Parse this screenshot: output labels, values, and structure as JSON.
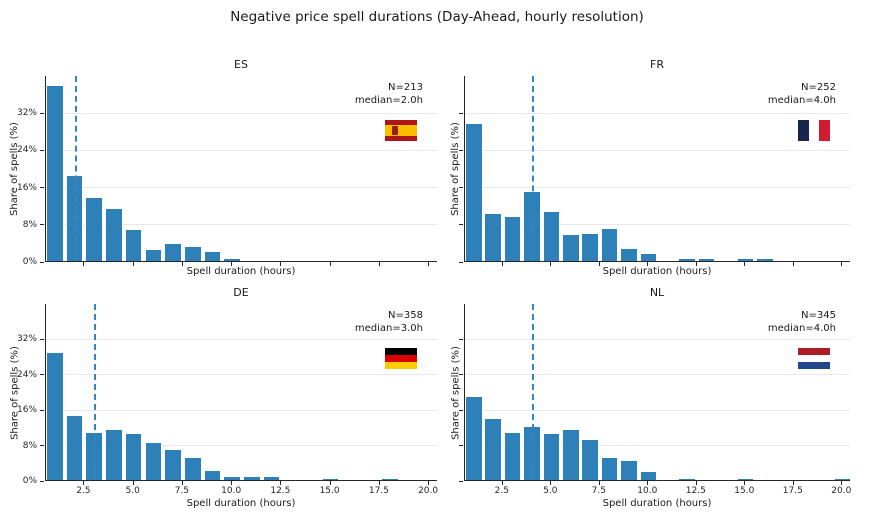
{
  "figure": {
    "title": "Negative price spell durations (Day-Ahead, hourly resolution)",
    "background": "#ffffff"
  },
  "axes_style": {
    "xlabel": "Spell duration (hours)",
    "ylabel": "Share of spells (%)",
    "xlim": [
      0.55,
      20.45
    ],
    "ylim": [
      0,
      40
    ],
    "xtick_values": [
      2.5,
      5.0,
      7.5,
      10.0,
      12.5,
      15.0,
      17.5,
      20.0
    ],
    "xtick_labels": [
      "2.5",
      "5.0",
      "7.5",
      "10.0",
      "12.5",
      "15.0",
      "17.5",
      "20.0"
    ],
    "ytick_values": [
      0,
      8,
      16,
      24,
      32
    ],
    "ytick_labels": [
      "0%",
      "8%",
      "16%",
      "24%",
      "32%"
    ],
    "grid_values": [
      8,
      16,
      24,
      32
    ],
    "grid_color": "#e8e8e8",
    "bar_color": "#2e80b9",
    "bar_edge_color": "#ffffff",
    "median_line_color": "#3287c1",
    "spine_color": "#262626",
    "bar_width": 0.9
  },
  "chart_data": [
    {
      "type": "bar",
      "country": "ES",
      "title": "ES",
      "n": 213,
      "median_hours": 2.0,
      "annotation_lines": [
        "N=213",
        "median=2.0h"
      ],
      "x": [
        1,
        2,
        3,
        4,
        5,
        6,
        7,
        8,
        9,
        10
      ],
      "values": [
        37.6,
        18.3,
        13.6,
        11.3,
        6.6,
        2.4,
        3.6,
        3.0,
        2.0,
        0.5
      ],
      "show_xtick_labels": false,
      "show_ytick_labels": true,
      "flag": {
        "name": "flag-es",
        "orientation": "horizontal",
        "stripes": [
          {
            "color": "#AD1519",
            "ratio": 1
          },
          {
            "color": "#FABD00",
            "ratio": 2
          },
          {
            "color": "#AD1519",
            "ratio": 1
          }
        ],
        "emblem_color": "#9b1b1e"
      }
    },
    {
      "type": "bar",
      "country": "FR",
      "title": "FR",
      "n": 252,
      "median_hours": 4.0,
      "annotation_lines": [
        "N=252",
        "median=4.0h"
      ],
      "x": [
        1,
        2,
        3,
        4,
        5,
        6,
        7,
        8,
        9,
        10,
        12,
        13,
        15,
        16
      ],
      "values": [
        29.4,
        10.2,
        9.5,
        14.9,
        10.6,
        5.5,
        5.9,
        6.9,
        2.6,
        1.6,
        0.4,
        0.4,
        0.4,
        0.4
      ],
      "show_xtick_labels": false,
      "show_ytick_labels": false,
      "flag": {
        "name": "flag-fr",
        "orientation": "vertical",
        "stripes": [
          {
            "color": "#18264d",
            "ratio": 1
          },
          {
            "color": "#ffffff",
            "ratio": 1
          },
          {
            "color": "#d01c33",
            "ratio": 1
          }
        ],
        "emblem_color": null
      }
    },
    {
      "type": "bar",
      "country": "DE",
      "title": "DE",
      "n": 358,
      "median_hours": 3.0,
      "annotation_lines": [
        "N=358",
        "median=3.0h"
      ],
      "x": [
        1,
        2,
        3,
        4,
        5,
        6,
        7,
        8,
        9,
        10,
        11,
        12,
        15,
        18
      ],
      "values": [
        28.8,
        14.5,
        10.7,
        11.3,
        10.4,
        8.4,
        6.9,
        4.9,
        2.0,
        0.7,
        0.6,
        0.6,
        0.3,
        0.3
      ],
      "show_xtick_labels": true,
      "show_ytick_labels": true,
      "flag": {
        "name": "flag-de",
        "orientation": "horizontal",
        "stripes": [
          {
            "color": "#000000",
            "ratio": 1
          },
          {
            "color": "#dd0000",
            "ratio": 1
          },
          {
            "color": "#ffce00",
            "ratio": 1
          }
        ],
        "emblem_color": null
      }
    },
    {
      "type": "bar",
      "country": "NL",
      "title": "NL",
      "n": 345,
      "median_hours": 4.0,
      "annotation_lines": [
        "N=345",
        "median=4.0h"
      ],
      "x": [
        1,
        2,
        3,
        4,
        5,
        6,
        7,
        8,
        9,
        10,
        12,
        15,
        20
      ],
      "values": [
        18.8,
        13.7,
        10.7,
        12.1,
        10.3,
        11.3,
        9.0,
        5.0,
        4.3,
        1.8,
        0.3,
        0.3,
        0.3
      ],
      "show_xtick_labels": true,
      "show_ytick_labels": false,
      "flag": {
        "name": "flag-nl",
        "orientation": "horizontal",
        "stripes": [
          {
            "color": "#ae1c28",
            "ratio": 1
          },
          {
            "color": "#ffffff",
            "ratio": 1
          },
          {
            "color": "#21468b",
            "ratio": 1
          }
        ],
        "emblem_color": null
      }
    }
  ]
}
